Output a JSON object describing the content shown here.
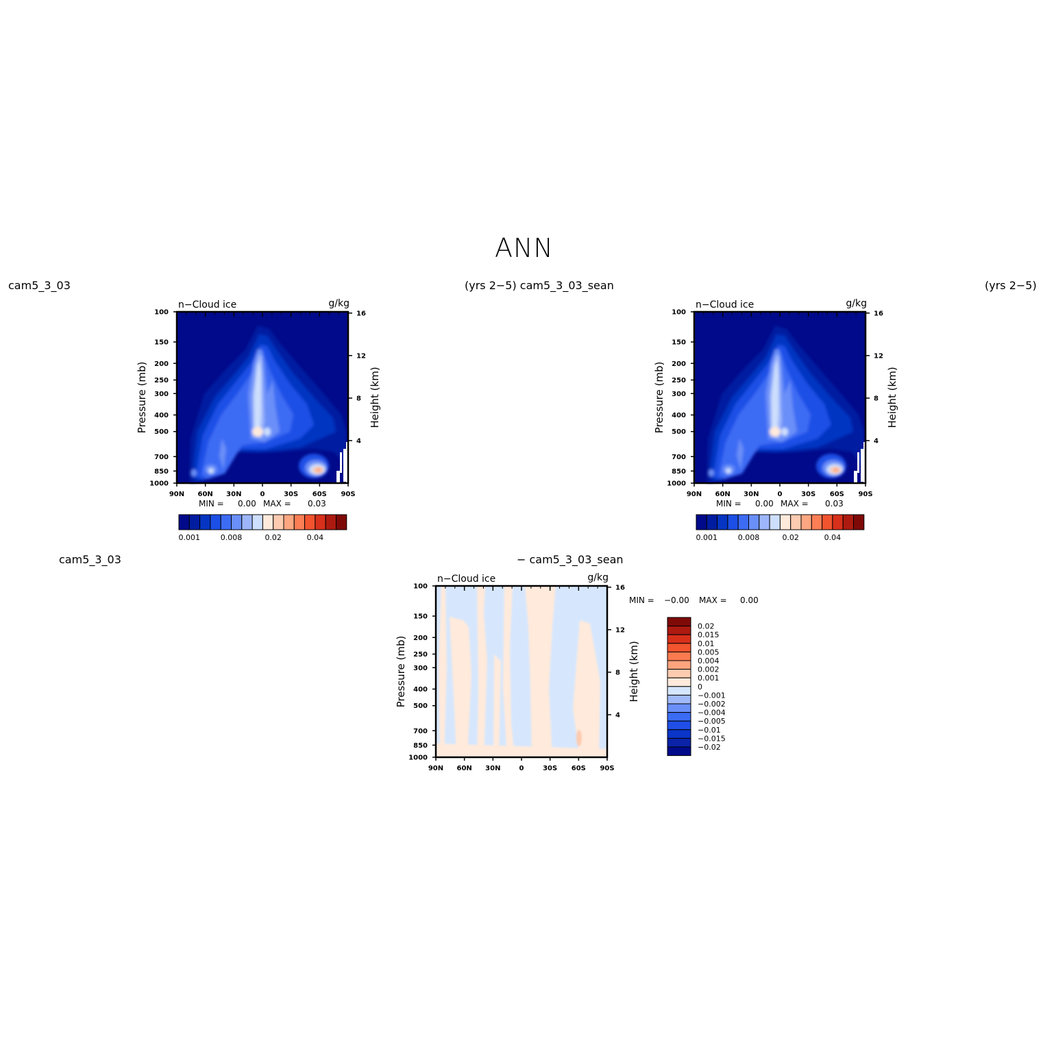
{
  "main_title": "ANN",
  "row1": {
    "left_label": "cam5_3_03",
    "center_label": "(yrs 2−5) cam5_3_03_sean",
    "right_label": "(yrs 2−5)"
  },
  "row2": {
    "left_label": "cam5_3_03",
    "center_label": "− cam5_3_03_sean"
  },
  "colors": {
    "abs_levels": [
      "#000a8a",
      "#001ca0",
      "#0535c2",
      "#1c4fe6",
      "#3d6cf4",
      "#6a8ff8",
      "#9db6fb",
      "#cddffd",
      "#ffeadb",
      "#fdcbb0",
      "#fca781",
      "#fb7e55",
      "#f2542e",
      "#d8301a",
      "#ad1a10",
      "#7e0a08"
    ],
    "diff_levels": [
      "#000a8a",
      "#0a23a8",
      "#0a35c8",
      "#1f4fe6",
      "#3a6cf3",
      "#6a90f8",
      "#a0baf9",
      "#d6e7fd",
      "#ffeadb",
      "#fdcbb0",
      "#fca47e",
      "#fb7a4f",
      "#f2542e",
      "#d8301a",
      "#ad1a10",
      "#7e0a08"
    ]
  },
  "chart_data": [
    {
      "type": "heatmap",
      "panel": "top-left",
      "title": "n−Cloud ice",
      "units": "g/kg",
      "xlabel": "",
      "ylabel": "Pressure (mb)",
      "y2label": "Height (km)",
      "x_ticks": [
        "90N",
        "60N",
        "30N",
        "0",
        "30S",
        "60S",
        "90S"
      ],
      "y_ticks": [
        100,
        150,
        200,
        250,
        300,
        400,
        500,
        700,
        850,
        1000
      ],
      "y2_ticks": [
        16,
        12,
        8,
        4
      ],
      "ylim": [
        1000,
        100
      ],
      "xlim": [
        "90N",
        "90S"
      ],
      "min_label": "MIN =",
      "min_value": "0.00",
      "max_label": "MAX =",
      "max_value": "0.03",
      "colorbar_labels": [
        "0.001",
        "0.008",
        "0.02",
        "0.04"
      ],
      "colorbar_orientation": "horizontal"
    },
    {
      "type": "heatmap",
      "panel": "top-right",
      "title": "n−Cloud ice",
      "units": "g/kg",
      "xlabel": "",
      "ylabel": "Pressure (mb)",
      "y2label": "Height (km)",
      "x_ticks": [
        "90N",
        "60N",
        "30N",
        "0",
        "30S",
        "60S",
        "90S"
      ],
      "y_ticks": [
        100,
        150,
        200,
        250,
        300,
        400,
        500,
        700,
        850,
        1000
      ],
      "y2_ticks": [
        16,
        12,
        8,
        4
      ],
      "ylim": [
        1000,
        100
      ],
      "xlim": [
        "90N",
        "90S"
      ],
      "min_label": "MIN =",
      "min_value": "0.00",
      "max_label": "MAX =",
      "max_value": "0.03",
      "colorbar_labels": [
        "0.001",
        "0.008",
        "0.02",
        "0.04"
      ],
      "colorbar_orientation": "horizontal"
    },
    {
      "type": "heatmap",
      "panel": "bottom-difference",
      "title": "n−Cloud ice",
      "units": "g/kg",
      "xlabel": "",
      "ylabel": "Pressure (mb)",
      "y2label": "Height (km)",
      "x_ticks": [
        "90N",
        "60N",
        "30N",
        "0",
        "30S",
        "60S",
        "90S"
      ],
      "y_ticks": [
        100,
        150,
        200,
        250,
        300,
        400,
        500,
        700,
        850,
        1000
      ],
      "y2_ticks": [
        16,
        12,
        8,
        4
      ],
      "ylim": [
        1000,
        100
      ],
      "xlim": [
        "90N",
        "90S"
      ],
      "min_label": "MIN =",
      "min_value": "−0.00",
      "max_label": "MAX =",
      "max_value": "0.00",
      "colorbar_labels": [
        "0.02",
        "0.015",
        "0.01",
        "0.005",
        "0.004",
        "0.002",
        "0.001",
        "0",
        "−0.001",
        "−0.002",
        "−0.004",
        "−0.005",
        "−0.01",
        "−0.015",
        "−0.02"
      ],
      "colorbar_orientation": "vertical"
    }
  ]
}
